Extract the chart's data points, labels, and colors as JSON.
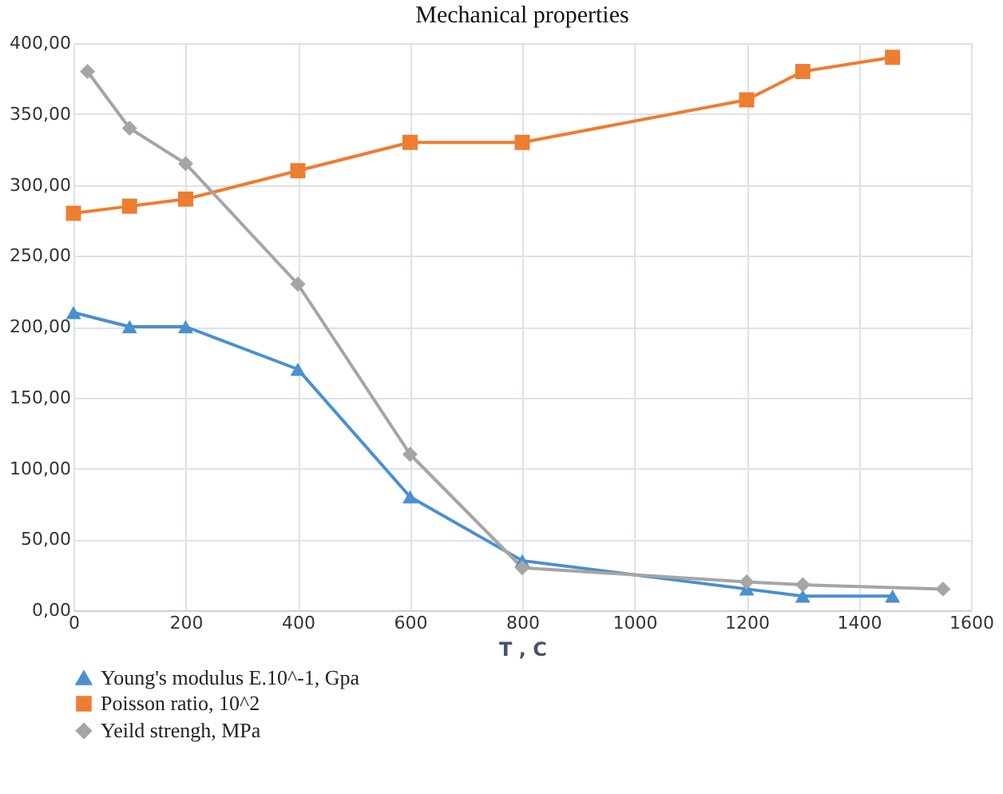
{
  "chart_data": {
    "type": "line",
    "title": "Mechanical properties",
    "xlabel": "T , C",
    "xlim": [
      0,
      1600
    ],
    "xticks": [
      0,
      200,
      400,
      600,
      800,
      1000,
      1200,
      1400,
      1600
    ],
    "ylim": [
      0,
      400
    ],
    "yticks": [
      {
        "value": 0,
        "label": "0,00"
      },
      {
        "value": 50,
        "label": "50,00"
      },
      {
        "value": 100,
        "label": "100,00"
      },
      {
        "value": 150,
        "label": "150,00"
      },
      {
        "value": 200,
        "label": "200,00"
      },
      {
        "value": 250,
        "label": "250,00"
      },
      {
        "value": 300,
        "label": "300,00"
      },
      {
        "value": 350,
        "label": "350,00"
      },
      {
        "value": 400,
        "label": "400,00"
      }
    ],
    "grid": true,
    "legend": "bottom",
    "series": [
      {
        "name": "Young's modulus E.10^-1, Gpa",
        "color": "#4a90d0",
        "marker": "triangle",
        "x": [
          0,
          100,
          200,
          400,
          600,
          800,
          1200,
          1300,
          1460
        ],
        "values": [
          210,
          200,
          200,
          170,
          80,
          35,
          15,
          10,
          10
        ]
      },
      {
        "name": "Poisson ratio, 10^2",
        "color": "#ed7d31",
        "marker": "square",
        "x": [
          0,
          100,
          200,
          400,
          600,
          800,
          1200,
          1300,
          1460
        ],
        "values": [
          280,
          285,
          290,
          310,
          330,
          330,
          360,
          380,
          390
        ]
      },
      {
        "name": "Yeild strengh, MPa",
        "color": "#a5a5a5",
        "marker": "diamond",
        "x": [
          25,
          100,
          200,
          400,
          600,
          800,
          1200,
          1300,
          1550
        ],
        "values": [
          380,
          340,
          315,
          230,
          110,
          30,
          20,
          18,
          15
        ]
      }
    ]
  }
}
